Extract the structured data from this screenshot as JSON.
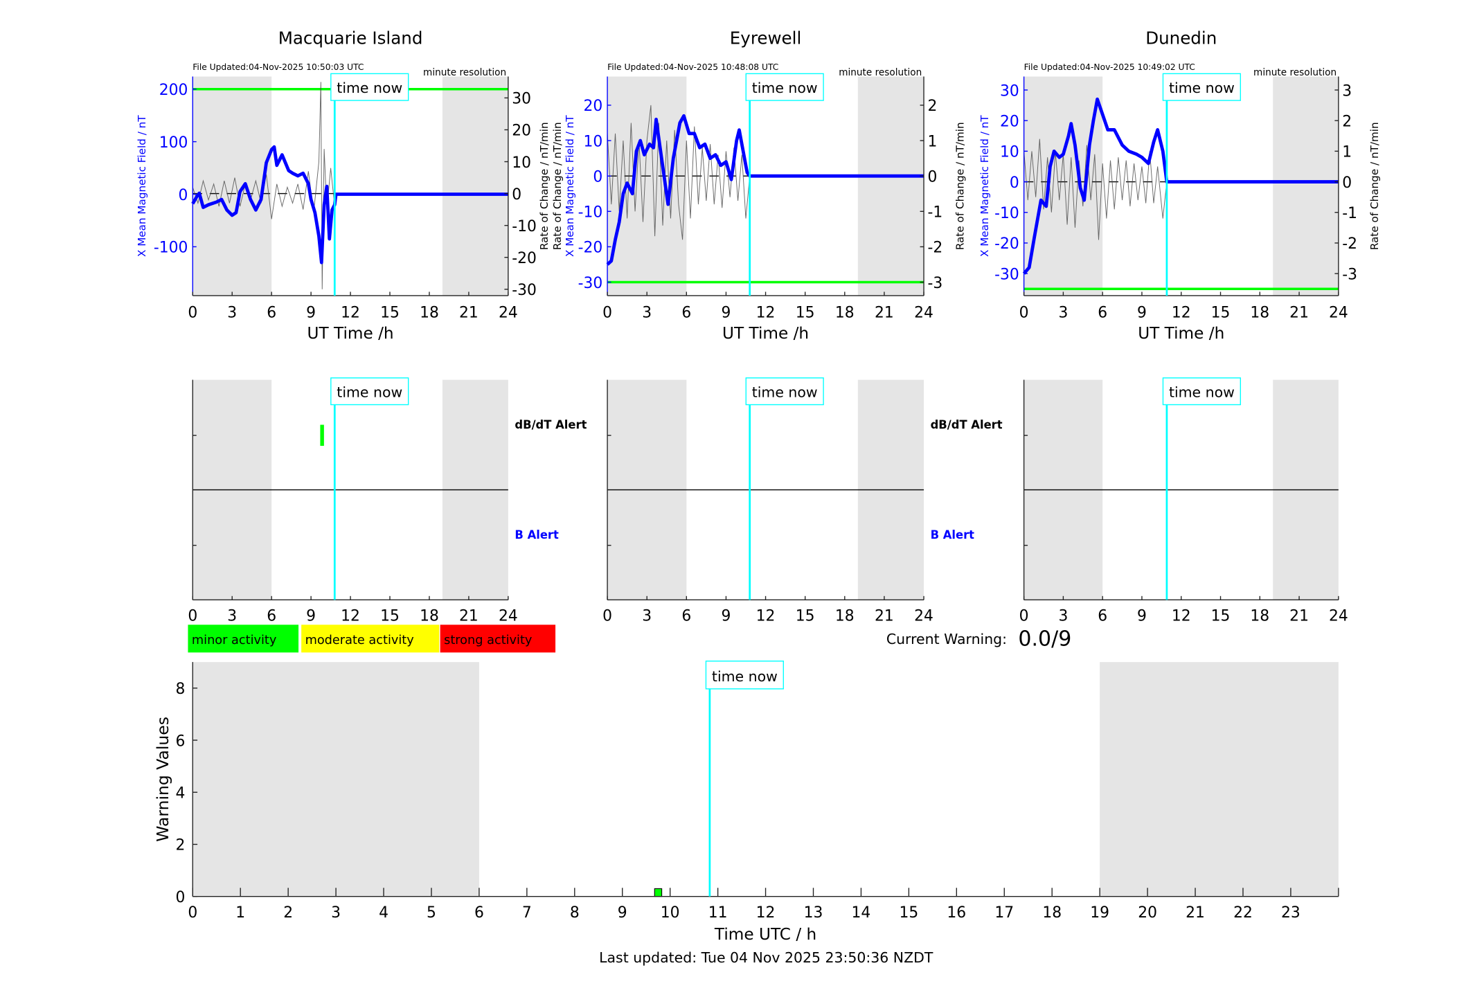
{
  "colors": {
    "field": "#0000ff",
    "threshold": "#00ff00",
    "time_now": "#00ffff",
    "night": "#e5e5e5",
    "rate": "#444444",
    "minor": "#00ff00",
    "moderate": "#ffff00",
    "strong": "#ff0000"
  },
  "time_now_label": "time now",
  "chart_data": [
    {
      "type": "line",
      "title": "Macquarie Island",
      "file_updated": "File Updated:04-Nov-2025 10:50:03 UTC",
      "resolution": "minute resolution",
      "xlabel": "UT Time /h",
      "ylabel_left": "X Mean Magnetic Field / nT",
      "ylabel_left2": "",
      "ylabel_right": "Rate of Change / nT/min",
      "xlim": [
        0,
        24
      ],
      "xticks": [
        0,
        3,
        6,
        9,
        12,
        15,
        18,
        21,
        24
      ],
      "ylim_left": [
        -193,
        224
      ],
      "yticks_left": [
        -100,
        0,
        100,
        200
      ],
      "ylim_right": [
        -32,
        36.7
      ],
      "yticks_right": [
        -30,
        -20,
        -10,
        0,
        10,
        20,
        30
      ],
      "threshold": 200,
      "night_bands": [
        [
          0,
          6
        ],
        [
          19,
          24
        ]
      ],
      "time_now": 10.8,
      "field": [
        [
          0,
          -18
        ],
        [
          0.3,
          -5
        ],
        [
          0.5,
          2
        ],
        [
          0.8,
          -25
        ],
        [
          1.2,
          -20
        ],
        [
          1.8,
          -15
        ],
        [
          2.2,
          -10
        ],
        [
          2.6,
          -30
        ],
        [
          3,
          -40
        ],
        [
          3.3,
          -35
        ],
        [
          3.6,
          5
        ],
        [
          4,
          20
        ],
        [
          4.4,
          -10
        ],
        [
          4.8,
          -30
        ],
        [
          5.2,
          -10
        ],
        [
          5.6,
          60
        ],
        [
          6,
          85
        ],
        [
          6.2,
          90
        ],
        [
          6.4,
          55
        ],
        [
          6.8,
          75
        ],
        [
          7.3,
          45
        ],
        [
          7.6,
          40
        ],
        [
          8,
          35
        ],
        [
          8.4,
          40
        ],
        [
          8.8,
          20
        ],
        [
          9,
          -10
        ],
        [
          9.3,
          -35
        ],
        [
          9.6,
          -80
        ],
        [
          9.8,
          -130
        ],
        [
          10,
          -20
        ],
        [
          10.2,
          15
        ],
        [
          10.4,
          -85
        ],
        [
          10.6,
          -30
        ],
        [
          10.8,
          -20
        ],
        [
          10.9,
          0
        ],
        [
          24,
          0
        ]
      ],
      "rate": [
        [
          0,
          2
        ],
        [
          0.4,
          -3
        ],
        [
          0.8,
          4
        ],
        [
          1.2,
          -2
        ],
        [
          1.6,
          3
        ],
        [
          2,
          -4
        ],
        [
          2.4,
          4
        ],
        [
          2.8,
          -3
        ],
        [
          3.2,
          5
        ],
        [
          3.6,
          -4
        ],
        [
          4,
          3
        ],
        [
          4.4,
          -2
        ],
        [
          4.8,
          4
        ],
        [
          5.2,
          -3
        ],
        [
          5.6,
          6
        ],
        [
          6,
          -8
        ],
        [
          6.4,
          3
        ],
        [
          6.8,
          -4
        ],
        [
          7.2,
          2
        ],
        [
          7.6,
          -3
        ],
        [
          8,
          3
        ],
        [
          8.4,
          -5
        ],
        [
          8.8,
          7
        ],
        [
          9.2,
          -6
        ],
        [
          9.6,
          10
        ],
        [
          9.75,
          35
        ],
        [
          9.85,
          -30
        ],
        [
          10,
          14
        ],
        [
          10.2,
          -5
        ],
        [
          10.5,
          8
        ],
        [
          10.8,
          -4
        ],
        [
          10.9,
          0
        ],
        [
          24,
          0
        ]
      ]
    },
    {
      "type": "line",
      "title": "Eyrewell",
      "file_updated": "File Updated:04-Nov-2025 10:48:08 UTC",
      "resolution": "minute resolution",
      "xlabel": "UT Time /h",
      "ylabel_left": "X Mean Magnetic Field / nT",
      "ylabel_left2": "Rate of Change / nT/min",
      "ylabel_right": "Rate of Change / nT/min",
      "xlim": [
        0,
        24
      ],
      "xticks": [
        0,
        3,
        6,
        9,
        12,
        15,
        18,
        21,
        24
      ],
      "ylim_left": [
        -33.8,
        28.1
      ],
      "yticks_left": [
        -30,
        -20,
        -10,
        0,
        10,
        20
      ],
      "ylim_right": [
        -3.38,
        2.81
      ],
      "yticks_right": [
        -3,
        -2,
        -1,
        0,
        1,
        2
      ],
      "threshold": -30,
      "night_bands": [
        [
          0,
          6
        ],
        [
          19,
          24
        ]
      ],
      "time_now": 10.8,
      "field": [
        [
          0,
          -25
        ],
        [
          0.3,
          -24
        ],
        [
          0.6,
          -18
        ],
        [
          0.9,
          -13
        ],
        [
          1.2,
          -5
        ],
        [
          1.5,
          -2
        ],
        [
          1.9,
          -5
        ],
        [
          2.2,
          7
        ],
        [
          2.5,
          10
        ],
        [
          2.8,
          6
        ],
        [
          3.2,
          9
        ],
        [
          3.5,
          8
        ],
        [
          3.7,
          16
        ],
        [
          4,
          8
        ],
        [
          4.3,
          0
        ],
        [
          4.6,
          -8
        ],
        [
          5,
          5
        ],
        [
          5.5,
          15
        ],
        [
          5.8,
          17
        ],
        [
          6.2,
          12
        ],
        [
          6.6,
          12
        ],
        [
          7,
          8
        ],
        [
          7.4,
          9
        ],
        [
          7.8,
          5
        ],
        [
          8.2,
          6
        ],
        [
          8.6,
          3
        ],
        [
          9,
          4
        ],
        [
          9.4,
          -1
        ],
        [
          9.8,
          10
        ],
        [
          10,
          13
        ],
        [
          10.3,
          7
        ],
        [
          10.6,
          1
        ],
        [
          10.8,
          0
        ],
        [
          24,
          0
        ]
      ],
      "rate": [
        [
          0,
          1.2
        ],
        [
          0.3,
          -0.8
        ],
        [
          0.6,
          1.2
        ],
        [
          0.9,
          -1
        ],
        [
          1.2,
          1
        ],
        [
          1.5,
          -1.2
        ],
        [
          1.8,
          1.5
        ],
        [
          2.1,
          -1
        ],
        [
          2.4,
          1
        ],
        [
          2.7,
          -1.3
        ],
        [
          3,
          1
        ],
        [
          3.3,
          2
        ],
        [
          3.6,
          -1.7
        ],
        [
          3.9,
          1.5
        ],
        [
          4.2,
          -1.4
        ],
        [
          4.5,
          1
        ],
        [
          4.8,
          -1.2
        ],
        [
          5.1,
          1.3
        ],
        [
          5.4,
          -0.8
        ],
        [
          5.7,
          -1.8
        ],
        [
          6,
          1
        ],
        [
          6.3,
          -1.2
        ],
        [
          6.6,
          1.4
        ],
        [
          6.9,
          -0.8
        ],
        [
          7.2,
          0.8
        ],
        [
          7.5,
          -0.7
        ],
        [
          7.8,
          0.9
        ],
        [
          8.1,
          -0.8
        ],
        [
          8.4,
          0.6
        ],
        [
          8.7,
          -0.9
        ],
        [
          9,
          0.7
        ],
        [
          9.3,
          -0.6
        ],
        [
          9.6,
          0.8
        ],
        [
          9.9,
          -0.7
        ],
        [
          10.2,
          0.6
        ],
        [
          10.5,
          -1.2
        ],
        [
          10.8,
          0
        ],
        [
          24,
          0
        ]
      ]
    },
    {
      "type": "line",
      "title": "Dunedin",
      "file_updated": "File Updated:04-Nov-2025 10:49:02 UTC",
      "resolution": "minute resolution",
      "xlabel": "UT Time /h",
      "ylabel_left": "X Mean Magnetic Field / nT",
      "ylabel_left2": "",
      "ylabel_right": "Rate of Change / nT/min",
      "xlim": [
        0,
        24
      ],
      "xticks": [
        0,
        3,
        6,
        9,
        12,
        15,
        18,
        21,
        24
      ],
      "ylim_left": [
        -37.2,
        34.4
      ],
      "yticks_left": [
        -30,
        -20,
        -10,
        0,
        10,
        20,
        30
      ],
      "ylim_right": [
        -3.72,
        3.44
      ],
      "yticks_right": [
        -3,
        -2,
        -1,
        0,
        1,
        2,
        3
      ],
      "threshold": -35,
      "night_bands": [
        [
          0,
          6
        ],
        [
          19,
          24
        ]
      ],
      "time_now": 10.9,
      "field": [
        [
          0,
          -30
        ],
        [
          0.4,
          -28
        ],
        [
          0.8,
          -18
        ],
        [
          1.3,
          -6
        ],
        [
          1.7,
          -8
        ],
        [
          2,
          5
        ],
        [
          2.3,
          10
        ],
        [
          2.7,
          8
        ],
        [
          3,
          9
        ],
        [
          3.4,
          15
        ],
        [
          3.6,
          19
        ],
        [
          3.9,
          12
        ],
        [
          4.3,
          -2
        ],
        [
          4.6,
          -6
        ],
        [
          5,
          12
        ],
        [
          5.3,
          20
        ],
        [
          5.6,
          27
        ],
        [
          6,
          22
        ],
        [
          6.4,
          17
        ],
        [
          6.9,
          17
        ],
        [
          7.5,
          12
        ],
        [
          8,
          10
        ],
        [
          8.6,
          9
        ],
        [
          9,
          8
        ],
        [
          9.5,
          6
        ],
        [
          9.9,
          13
        ],
        [
          10.2,
          17
        ],
        [
          10.6,
          10
        ],
        [
          10.9,
          0
        ],
        [
          24,
          0
        ]
      ],
      "rate": [
        [
          0,
          1
        ],
        [
          0.3,
          -0.6
        ],
        [
          0.6,
          1
        ],
        [
          0.9,
          -0.5
        ],
        [
          1.2,
          1.4
        ],
        [
          1.5,
          -0.9
        ],
        [
          1.8,
          0.8
        ],
        [
          2.1,
          -1
        ],
        [
          2.4,
          1
        ],
        [
          2.7,
          -0.6
        ],
        [
          3,
          0.9
        ],
        [
          3.3,
          -1.4
        ],
        [
          3.6,
          0.8
        ],
        [
          3.9,
          -1.5
        ],
        [
          4.2,
          0.7
        ],
        [
          4.5,
          -0.8
        ],
        [
          4.8,
          1.2
        ],
        [
          5.1,
          -0.6
        ],
        [
          5.4,
          0.9
        ],
        [
          5.7,
          -1.9
        ],
        [
          6,
          0.6
        ],
        [
          6.3,
          -1.2
        ],
        [
          6.6,
          0.7
        ],
        [
          6.9,
          -0.9
        ],
        [
          7.2,
          0.8
        ],
        [
          7.5,
          -0.6
        ],
        [
          7.8,
          0.7
        ],
        [
          8.1,
          -0.8
        ],
        [
          8.4,
          0.6
        ],
        [
          8.7,
          -0.6
        ],
        [
          9,
          0.5
        ],
        [
          9.3,
          -0.7
        ],
        [
          9.6,
          1
        ],
        [
          9.9,
          -0.7
        ],
        [
          10.2,
          0.5
        ],
        [
          10.6,
          -1.2
        ],
        [
          10.9,
          0
        ],
        [
          24,
          0
        ]
      ]
    }
  ],
  "alerts": {
    "dbdt_label": "dB/dT Alert",
    "b_label": "B Alert",
    "xticks": [
      0,
      3,
      6,
      9,
      12,
      15,
      18,
      21,
      24
    ],
    "panels": [
      {
        "dbdt": [
          [
            9.7,
            9.8
          ]
        ],
        "b": []
      },
      {
        "dbdt": [],
        "b": []
      },
      {
        "dbdt": [],
        "b": []
      }
    ]
  },
  "legend": [
    {
      "label": "minor activity",
      "color": "#00ff00"
    },
    {
      "label": "moderate activity",
      "color": "#ffff00"
    },
    {
      "label": "strong activity",
      "color": "#ff0000"
    }
  ],
  "current_warning": {
    "label": "Current Warning:",
    "value": "0.0/9"
  },
  "warning_chart": {
    "type": "bar",
    "xlabel": "Time UTC / h",
    "ylabel": "Warning Values",
    "xlim": [
      0,
      24
    ],
    "ylim": [
      0,
      9
    ],
    "xticks": [
      0,
      1,
      2,
      3,
      4,
      5,
      6,
      7,
      8,
      9,
      10,
      11,
      12,
      13,
      14,
      15,
      16,
      17,
      18,
      19,
      20,
      21,
      22,
      23
    ],
    "yticks": [
      0,
      2,
      4,
      6,
      8
    ],
    "night_bands": [
      [
        0,
        6
      ],
      [
        19,
        24
      ]
    ],
    "time_now": 10.83,
    "bars": [
      {
        "x": 9.75,
        "width": 0.15,
        "value": 0.3,
        "color": "#00ff00"
      }
    ]
  },
  "footer": "Last updated: Tue 04 Nov 2025 23:50:36 NZDT"
}
